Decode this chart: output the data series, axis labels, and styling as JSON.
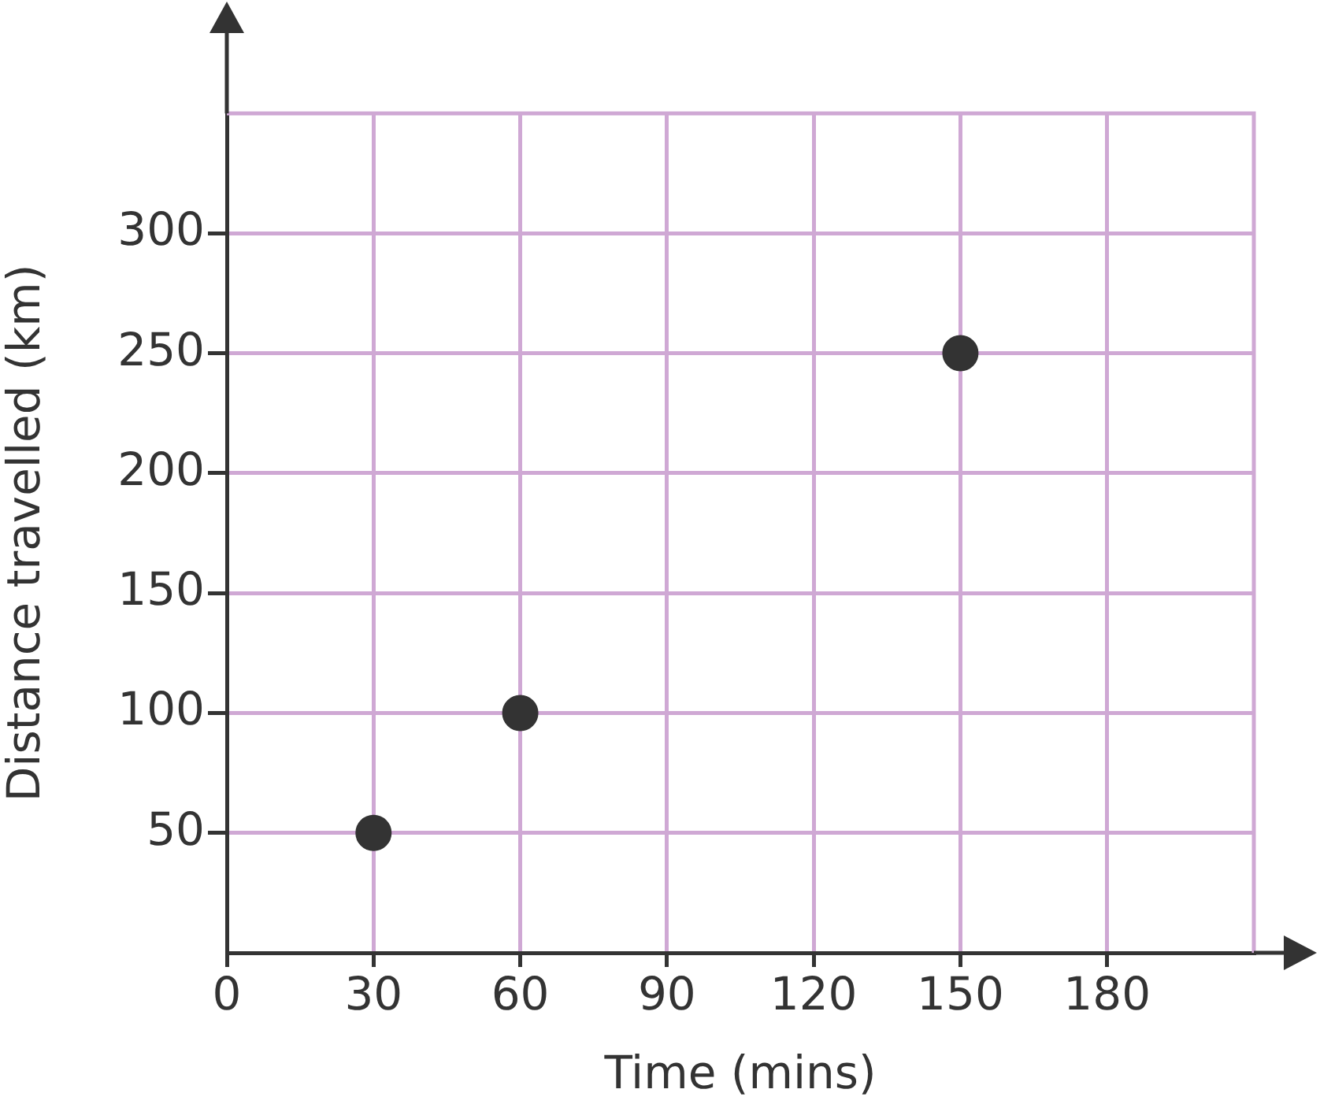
{
  "chart_data": {
    "type": "scatter",
    "xlabel": "Time (mins)",
    "ylabel": "Distance travelled (km)",
    "x": [
      30,
      60,
      150
    ],
    "values": [
      50,
      100,
      250
    ],
    "color": "#333333",
    "xlim": [
      0,
      210
    ],
    "ylim": [
      0,
      350
    ],
    "xticks": [
      0,
      30,
      60,
      90,
      120,
      150,
      180
    ],
    "yticks": [
      50,
      100,
      150,
      200,
      250,
      300
    ],
    "grid": true,
    "marker": "circle",
    "legend": false
  }
}
